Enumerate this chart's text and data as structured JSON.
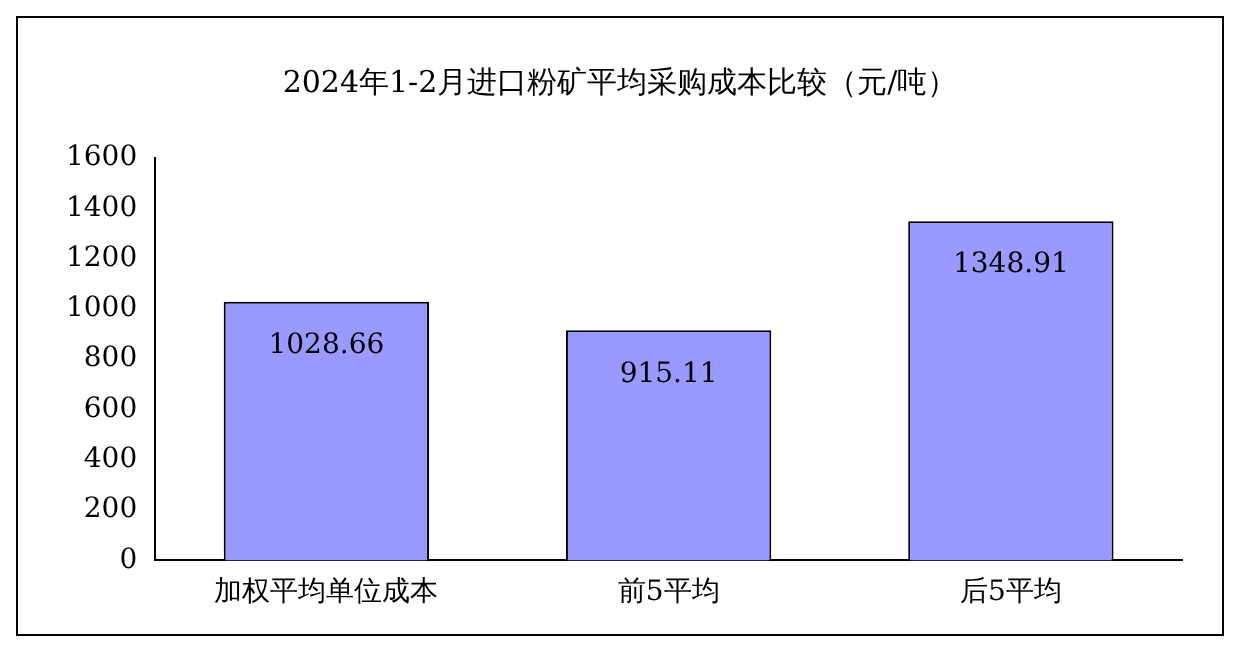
{
  "chart_data": {
    "type": "bar",
    "title": "2024年1-2月进口粉矿平均采购成本比较（元/吨）",
    "categories": [
      "加权平均单位成本",
      "前5平均",
      "后5平均"
    ],
    "values": [
      1028.66,
      915.11,
      1348.91
    ],
    "color": "#9999ff",
    "ylim": [
      0,
      1600
    ],
    "yticks": [
      0,
      200,
      400,
      600,
      800,
      1000,
      1200,
      1400,
      1600
    ],
    "grid": false,
    "legend": false,
    "data_labels": true
  }
}
